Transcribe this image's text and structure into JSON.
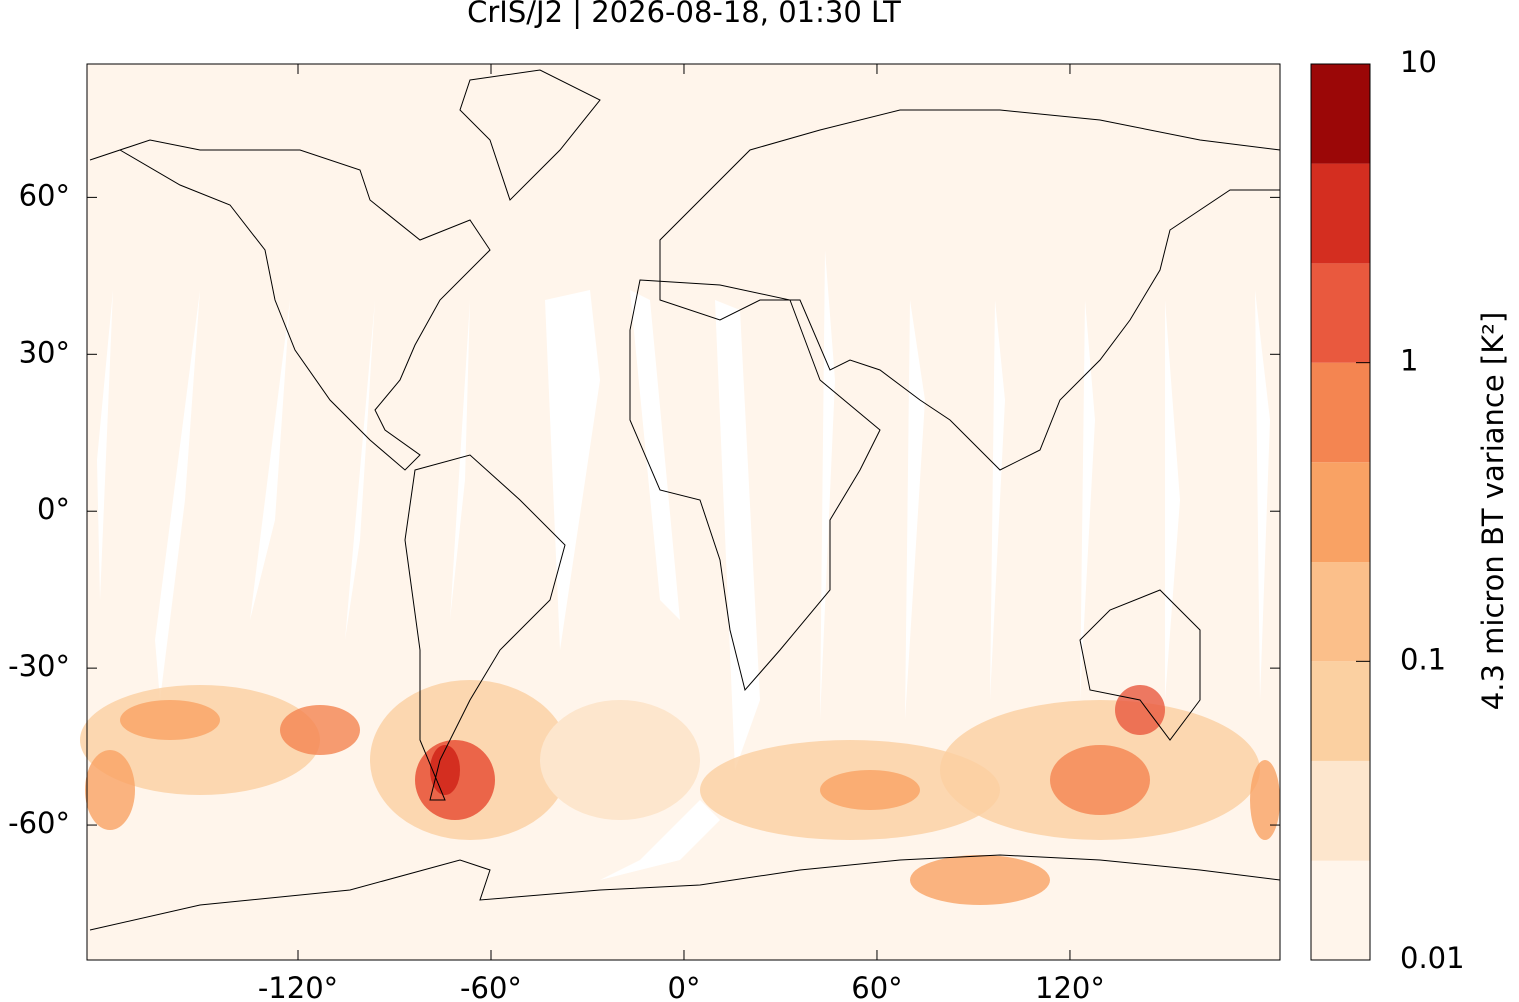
{
  "chart_data": {
    "type": "map",
    "title": "CrIS/J2 | 2026-08-18, 01:30 LT",
    "xlim": [
      -185.6,
      185.3
    ],
    "ylim": [
      -85.8,
      85.5
    ],
    "xticks": [
      {
        "value": -120,
        "label": "-120°"
      },
      {
        "value": -60,
        "label": "-60°"
      },
      {
        "value": 0,
        "label": "0°"
      },
      {
        "value": 60,
        "label": "60°"
      },
      {
        "value": 120,
        "label": "120°"
      }
    ],
    "yticks": [
      {
        "value": -60,
        "label": "-60°"
      },
      {
        "value": -30,
        "label": "-30°"
      },
      {
        "value": 0,
        "label": "0°"
      },
      {
        "value": 30,
        "label": "30°"
      },
      {
        "value": 60,
        "label": "60°"
      }
    ],
    "colorbar": {
      "label": "4.3 micron BT variance [K²]",
      "log": true,
      "lim": [
        0.01,
        10
      ],
      "ticks": [
        0.01,
        0.1,
        1,
        10
      ],
      "levels": [
        0.01,
        0.0215,
        0.0464,
        0.1,
        0.215,
        0.464,
        1,
        2.15,
        4.64,
        10
      ],
      "colors": [
        "#fff5eb",
        "#fde6cd",
        "#fbd0a1",
        "#fbbf8a",
        "#f9a264",
        "#f48551",
        "#e9593e",
        "#d42e20",
        "#9b0707"
      ]
    }
  }
}
